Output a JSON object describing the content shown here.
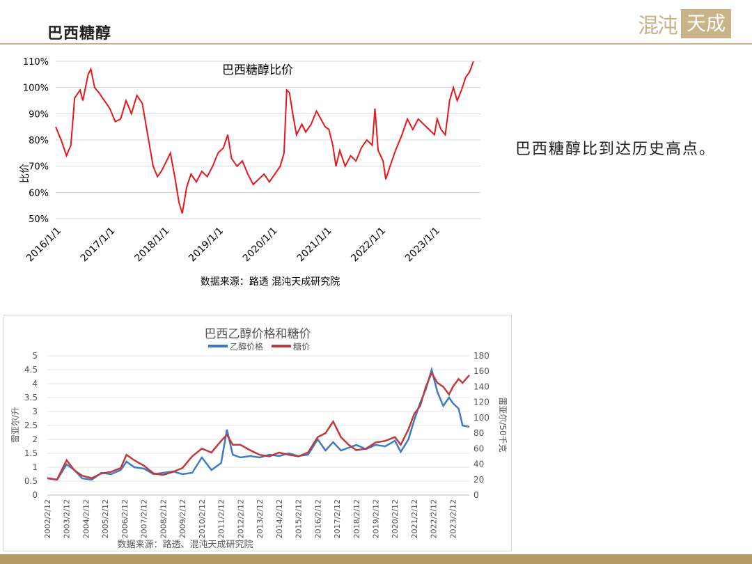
{
  "header": {
    "title": "巴西糖醇",
    "logo_text_a": "混沌",
    "logo_text_b": "天成"
  },
  "side_note": "巴西糖醇比到达历史高点。",
  "colors": {
    "ratio_line": "#e8161b",
    "ethanol": "#3c7bc8",
    "sugar": "#c0393b",
    "gold": "#c9b48a"
  },
  "chart_data": [
    {
      "type": "line",
      "title": "巴西糖醇比价",
      "ylabel": "比价",
      "ylim": [
        0.5,
        1.1
      ],
      "yticks": [
        "110%",
        "100%",
        "90%",
        "80%",
        "70%",
        "60%",
        "50%"
      ],
      "xticks": [
        "2016/1/1",
        "2017/1/1",
        "2018/1/1",
        "2019/1/1",
        "2020/1/1",
        "2021/1/1",
        "2022/1/1",
        "2023/1/1"
      ],
      "x_range": [
        2016.0,
        2023.85
      ],
      "source": "数据来源：路透 混沌天成研究院",
      "series": [
        {
          "values": [
            [
              2016.0,
              0.85
            ],
            [
              2016.1,
              0.8
            ],
            [
              2016.2,
              0.74
            ],
            [
              2016.28,
              0.78
            ],
            [
              2016.35,
              0.96
            ],
            [
              2016.45,
              0.99
            ],
            [
              2016.5,
              0.95
            ],
            [
              2016.6,
              1.05
            ],
            [
              2016.65,
              1.07
            ],
            [
              2016.72,
              1.0
            ],
            [
              2016.8,
              0.98
            ],
            [
              2016.9,
              0.95
            ],
            [
              2017.0,
              0.92
            ],
            [
              2017.1,
              0.87
            ],
            [
              2017.2,
              0.88
            ],
            [
              2017.3,
              0.95
            ],
            [
              2017.4,
              0.9
            ],
            [
              2017.5,
              0.97
            ],
            [
              2017.6,
              0.94
            ],
            [
              2017.7,
              0.82
            ],
            [
              2017.8,
              0.7
            ],
            [
              2017.88,
              0.66
            ],
            [
              2017.95,
              0.68
            ],
            [
              2018.05,
              0.72
            ],
            [
              2018.12,
              0.75
            ],
            [
              2018.2,
              0.66
            ],
            [
              2018.28,
              0.56
            ],
            [
              2018.34,
              0.52
            ],
            [
              2018.42,
              0.62
            ],
            [
              2018.5,
              0.67
            ],
            [
              2018.6,
              0.64
            ],
            [
              2018.7,
              0.68
            ],
            [
              2018.8,
              0.66
            ],
            [
              2018.9,
              0.7
            ],
            [
              2019.0,
              0.75
            ],
            [
              2019.1,
              0.77
            ],
            [
              2019.18,
              0.82
            ],
            [
              2019.25,
              0.73
            ],
            [
              2019.35,
              0.7
            ],
            [
              2019.45,
              0.72
            ],
            [
              2019.55,
              0.67
            ],
            [
              2019.65,
              0.63
            ],
            [
              2019.75,
              0.65
            ],
            [
              2019.85,
              0.67
            ],
            [
              2019.95,
              0.64
            ],
            [
              2020.05,
              0.67
            ],
            [
              2020.15,
              0.7
            ],
            [
              2020.22,
              0.75
            ],
            [
              2020.27,
              0.99
            ],
            [
              2020.32,
              0.98
            ],
            [
              2020.38,
              0.9
            ],
            [
              2020.45,
              0.82
            ],
            [
              2020.55,
              0.86
            ],
            [
              2020.62,
              0.83
            ],
            [
              2020.72,
              0.86
            ],
            [
              2020.82,
              0.91
            ],
            [
              2020.9,
              0.88
            ],
            [
              2020.98,
              0.85
            ],
            [
              2021.05,
              0.84
            ],
            [
              2021.12,
              0.78
            ],
            [
              2021.18,
              0.7
            ],
            [
              2021.25,
              0.76
            ],
            [
              2021.35,
              0.7
            ],
            [
              2021.45,
              0.74
            ],
            [
              2021.55,
              0.72
            ],
            [
              2021.65,
              0.77
            ],
            [
              2021.75,
              0.8
            ],
            [
              2021.85,
              0.78
            ],
            [
              2021.9,
              0.92
            ],
            [
              2021.96,
              0.76
            ],
            [
              2022.05,
              0.72
            ],
            [
              2022.1,
              0.65
            ],
            [
              2022.18,
              0.7
            ],
            [
              2022.28,
              0.76
            ],
            [
              2022.4,
              0.82
            ],
            [
              2022.5,
              0.88
            ],
            [
              2022.6,
              0.84
            ],
            [
              2022.7,
              0.88
            ],
            [
              2022.8,
              0.86
            ],
            [
              2022.9,
              0.84
            ],
            [
              2023.0,
              0.82
            ],
            [
              2023.05,
              0.88
            ],
            [
              2023.12,
              0.84
            ],
            [
              2023.2,
              0.82
            ],
            [
              2023.28,
              0.95
            ],
            [
              2023.35,
              1.0
            ],
            [
              2023.42,
              0.95
            ],
            [
              2023.5,
              0.99
            ],
            [
              2023.58,
              1.04
            ],
            [
              2023.65,
              1.06
            ],
            [
              2023.72,
              1.1
            ]
          ]
        }
      ]
    },
    {
      "type": "line",
      "title": "巴西乙醇价格和糖价",
      "ylabel_left": "雷亚尔/升",
      "ylabel_right": "雷亚尔/50千克",
      "ylim_left": [
        0,
        5
      ],
      "ylim_right": [
        0,
        180
      ],
      "yticks_left": [
        "0",
        "0.5",
        "1",
        "1.5",
        "2",
        "2.5",
        "3",
        "3.5",
        "4",
        "4.5",
        "5"
      ],
      "yticks_right": [
        "0",
        "20",
        "40",
        "60",
        "80",
        "100",
        "120",
        "140",
        "160",
        "180"
      ],
      "xticks": [
        "2002/2/12",
        "2003/2/12",
        "2004/2/12",
        "2005/2/12",
        "2006/2/12",
        "2007/2/12",
        "2008/2/12",
        "2009/2/12",
        "2010/2/12",
        "2011/2/12",
        "2012/2/12",
        "2013/2/12",
        "2014/2/12",
        "2015/2/12",
        "2016/2/12",
        "2017/2/12",
        "2018/2/12",
        "2019/2/12",
        "2020/2/12",
        "2021/2/12",
        "2022/2/12",
        "2023/2/12"
      ],
      "x_range": [
        2002.0,
        2023.85
      ],
      "source": "数据来源：路透、混沌天成研究院",
      "series": [
        {
          "name": "乙醇价格",
          "axis": "left",
          "values": [
            [
              2002.0,
              0.6
            ],
            [
              2002.5,
              0.55
            ],
            [
              2003.0,
              1.1
            ],
            [
              2003.4,
              0.9
            ],
            [
              2003.8,
              0.6
            ],
            [
              2004.3,
              0.55
            ],
            [
              2004.8,
              0.8
            ],
            [
              2005.3,
              0.75
            ],
            [
              2005.8,
              0.9
            ],
            [
              2006.1,
              1.2
            ],
            [
              2006.5,
              1.0
            ],
            [
              2007.0,
              0.95
            ],
            [
              2007.5,
              0.75
            ],
            [
              2008.0,
              0.8
            ],
            [
              2008.5,
              0.85
            ],
            [
              2009.0,
              0.75
            ],
            [
              2009.5,
              0.8
            ],
            [
              2010.0,
              1.35
            ],
            [
              2010.5,
              0.9
            ],
            [
              2011.0,
              1.15
            ],
            [
              2011.3,
              2.35
            ],
            [
              2011.6,
              1.45
            ],
            [
              2012.0,
              1.35
            ],
            [
              2012.5,
              1.4
            ],
            [
              2013.0,
              1.35
            ],
            [
              2013.5,
              1.45
            ],
            [
              2014.0,
              1.4
            ],
            [
              2014.5,
              1.5
            ],
            [
              2015.0,
              1.4
            ],
            [
              2015.5,
              1.45
            ],
            [
              2016.0,
              2.0
            ],
            [
              2016.4,
              1.6
            ],
            [
              2016.8,
              1.9
            ],
            [
              2017.2,
              1.6
            ],
            [
              2017.6,
              1.7
            ],
            [
              2018.0,
              1.8
            ],
            [
              2018.5,
              1.65
            ],
            [
              2019.0,
              1.8
            ],
            [
              2019.5,
              1.75
            ],
            [
              2020.0,
              1.95
            ],
            [
              2020.3,
              1.55
            ],
            [
              2020.7,
              2.0
            ],
            [
              2021.0,
              2.7
            ],
            [
              2021.3,
              3.3
            ],
            [
              2021.6,
              3.8
            ],
            [
              2021.9,
              4.5
            ],
            [
              2022.2,
              3.7
            ],
            [
              2022.5,
              3.2
            ],
            [
              2022.8,
              3.5
            ],
            [
              2023.0,
              3.3
            ],
            [
              2023.3,
              3.1
            ],
            [
              2023.5,
              2.5
            ],
            [
              2023.85,
              2.45
            ]
          ]
        },
        {
          "name": "糖价",
          "axis": "right",
          "values": [
            [
              2002.0,
              22
            ],
            [
              2002.5,
              20
            ],
            [
              2003.0,
              45
            ],
            [
              2003.4,
              32
            ],
            [
              2003.8,
              25
            ],
            [
              2004.3,
              22
            ],
            [
              2004.8,
              28
            ],
            [
              2005.3,
              30
            ],
            [
              2005.8,
              35
            ],
            [
              2006.1,
              52
            ],
            [
              2006.5,
              45
            ],
            [
              2007.0,
              38
            ],
            [
              2007.5,
              28
            ],
            [
              2008.0,
              26
            ],
            [
              2008.5,
              30
            ],
            [
              2009.0,
              35
            ],
            [
              2009.5,
              50
            ],
            [
              2010.0,
              60
            ],
            [
              2010.5,
              55
            ],
            [
              2011.0,
              70
            ],
            [
              2011.3,
              78
            ],
            [
              2011.6,
              65
            ],
            [
              2012.0,
              65
            ],
            [
              2012.5,
              58
            ],
            [
              2013.0,
              52
            ],
            [
              2013.5,
              50
            ],
            [
              2014.0,
              55
            ],
            [
              2014.5,
              52
            ],
            [
              2015.0,
              50
            ],
            [
              2015.5,
              55
            ],
            [
              2016.0,
              75
            ],
            [
              2016.4,
              80
            ],
            [
              2016.8,
              95
            ],
            [
              2017.2,
              75
            ],
            [
              2017.6,
              65
            ],
            [
              2018.0,
              58
            ],
            [
              2018.5,
              60
            ],
            [
              2019.0,
              68
            ],
            [
              2019.5,
              70
            ],
            [
              2020.0,
              75
            ],
            [
              2020.3,
              65
            ],
            [
              2020.7,
              85
            ],
            [
              2021.0,
              105
            ],
            [
              2021.3,
              115
            ],
            [
              2021.6,
              140
            ],
            [
              2021.9,
              158
            ],
            [
              2022.2,
              145
            ],
            [
              2022.5,
              140
            ],
            [
              2022.8,
              130
            ],
            [
              2023.0,
              140
            ],
            [
              2023.3,
              150
            ],
            [
              2023.5,
              145
            ],
            [
              2023.85,
              155
            ]
          ]
        }
      ]
    }
  ]
}
